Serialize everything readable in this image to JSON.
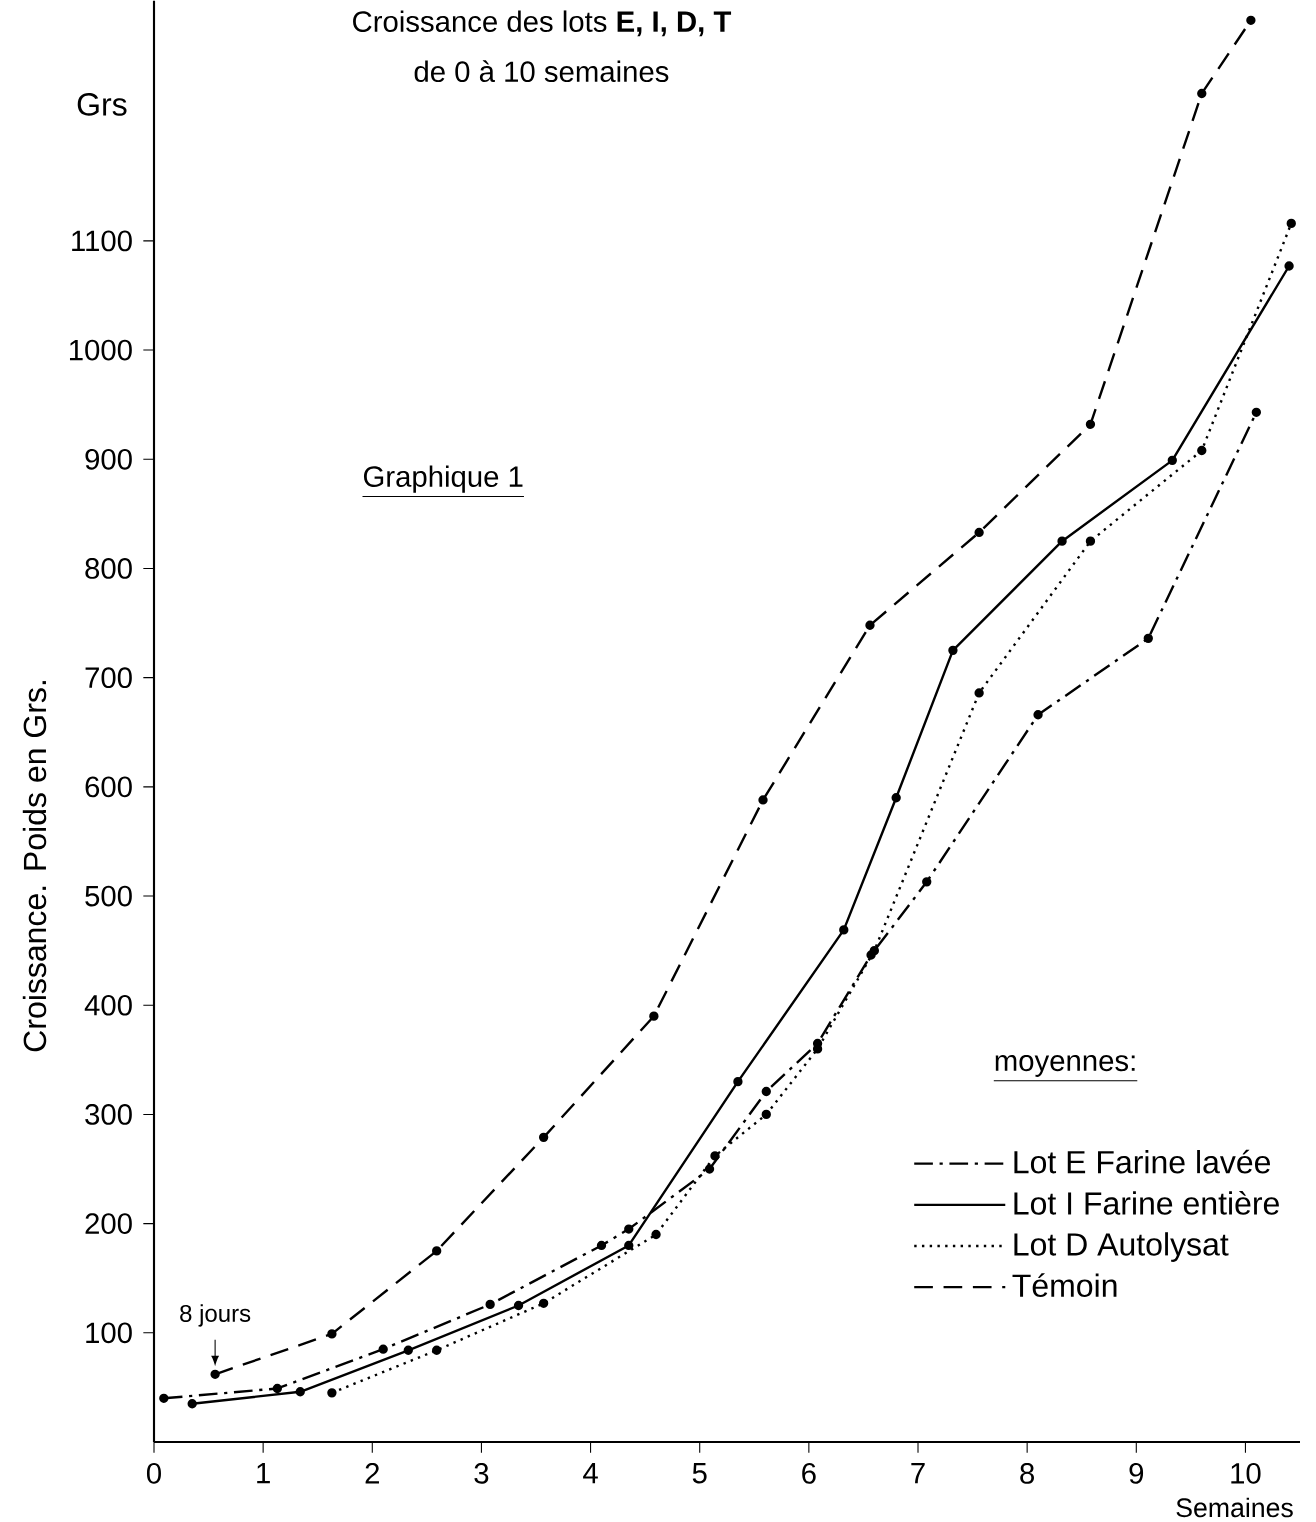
{
  "chart_data": {
    "type": "line",
    "title": "Croissance des lots **E, I, D, T**",
    "subtitle": "de 0 à 10 semaines",
    "xlabel": "Semaines",
    "ylabel": "Croissance. Poids en Grs.",
    "annotations": [
      "Grs",
      "Graphique 1",
      {
        "text": "8 jours",
        "x": 0.56,
        "y": 62
      }
    ],
    "legend_title": "moyennes:",
    "legend": "bottom right",
    "marker": "circle",
    "grid": false,
    "xlim": [
      0,
      10.5
    ],
    "ylim": [
      0,
      1320
    ],
    "xticks": [
      0,
      1,
      2,
      3,
      4,
      5,
      6,
      7,
      8,
      9,
      10
    ],
    "yticks": [
      100,
      200,
      300,
      400,
      500,
      600,
      700,
      800,
      900,
      1000,
      1100
    ],
    "series": [
      {
        "name": "Lot E Farine lavée",
        "color": "#000000",
        "line_style": "dashdot",
        "x": [
          0.09,
          1.13,
          2.1,
          3.08,
          4.1,
          4.35,
          5.09,
          5.61,
          6.08,
          6.57,
          7.08,
          8.1,
          9.11,
          10.1
        ],
        "values": [
          40,
          49,
          85,
          126,
          180,
          195,
          250,
          321,
          365,
          446,
          513,
          666,
          736,
          943
        ]
      },
      {
        "name": "Lot I Farine entière",
        "color": "#000000",
        "line_style": "solid",
        "x": [
          0.35,
          1.34,
          2.33,
          3.34,
          4.35,
          5.35,
          6.32,
          6.8,
          7.32,
          8.32,
          9.33,
          10.4
        ],
        "values": [
          35,
          46,
          84,
          125,
          180,
          330,
          469,
          590,
          725,
          825,
          899,
          1077
        ]
      },
      {
        "name": "Lot D Autolysat",
        "color": "#000000",
        "line_style": "dotted",
        "x": [
          1.63,
          2.59,
          3.57,
          4.6,
          5.14,
          5.61,
          6.08,
          6.6,
          7.56,
          8.58,
          9.6,
          10.42
        ],
        "values": [
          45,
          84,
          127,
          190,
          262,
          300,
          360,
          450,
          686,
          825,
          908,
          1116
        ]
      },
      {
        "name": "Témoin",
        "color": "#000000",
        "line_style": "dashed",
        "x": [
          0.56,
          1.63,
          2.59,
          3.57,
          4.58,
          5.58,
          6.56,
          7.56,
          8.58,
          9.6,
          10.05
        ],
        "values": [
          62,
          99,
          175,
          279,
          390,
          588,
          748,
          833,
          932,
          1235,
          1302
        ]
      }
    ]
  }
}
